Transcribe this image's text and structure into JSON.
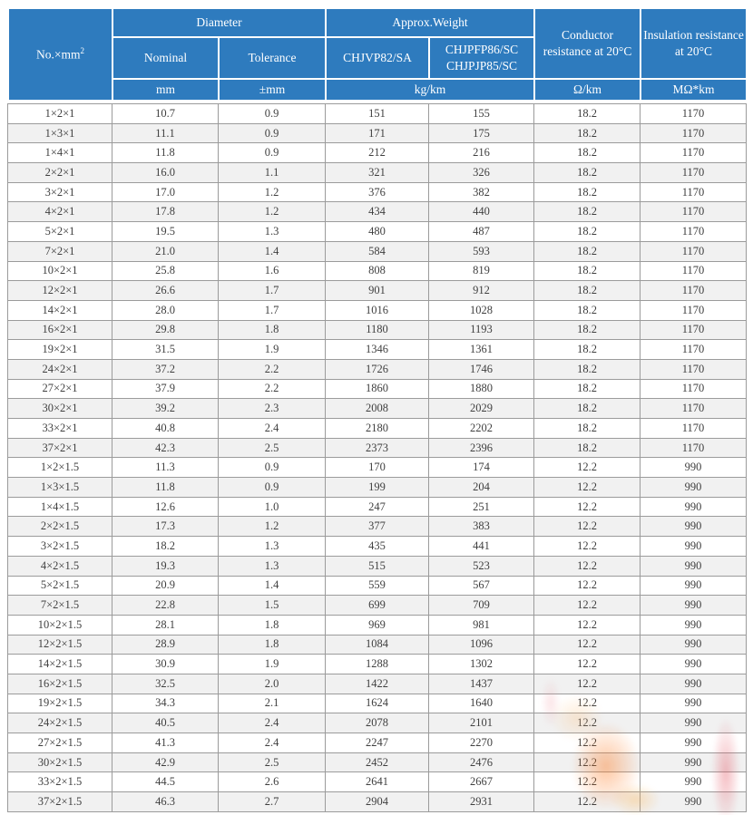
{
  "page": {
    "background": "#ffffff"
  },
  "colors": {
    "header_bg": "#2e7bbe",
    "header_text": "#ffffff",
    "row_alt_bg": "#f1f1f1",
    "grid_border": "#9b9b9b",
    "cell_text": "#3f3f3f",
    "watermark_orange": "#ff7820",
    "watermark_red": "#e4505f"
  },
  "table": {
    "header": {
      "no_label": "No.×mm",
      "no_sup": "2",
      "diameter_label": "Diameter",
      "approx_weight_label": "Approx.Weight",
      "nominal_label": "Nominal",
      "tolerance_label": "Tolerance",
      "weight_type_1": "CHJVP82/SA",
      "weight_type_2_line1": "CHJPFP86/SC",
      "weight_type_2_line2": "CHJPJP85/SC",
      "conductor_resistance_label": "Conductor resistance at 20°C",
      "insulation_resistance_label": "Insulation resistance at 20°C",
      "unit_nominal": "mm",
      "unit_tolerance": "±mm",
      "unit_weight": "kg/km",
      "unit_conductor": "Ω/km",
      "unit_insulation": "MΩ*km"
    },
    "column_keys": [
      "spec",
      "nominal-diameter",
      "tolerance-diameter",
      "weight-chjvp82-sa",
      "weight-chjpfp86-sc",
      "conductor-resistance",
      "insulation-resistance"
    ],
    "rows": [
      [
        "1×2×1",
        "10.7",
        "0.9",
        "151",
        "155",
        "18.2",
        "1170"
      ],
      [
        "1×3×1",
        "11.1",
        "0.9",
        "171",
        "175",
        "18.2",
        "1170"
      ],
      [
        "1×4×1",
        "11.8",
        "0.9",
        "212",
        "216",
        "18.2",
        "1170"
      ],
      [
        "2×2×1",
        "16.0",
        "1.1",
        "321",
        "326",
        "18.2",
        "1170"
      ],
      [
        "3×2×1",
        "17.0",
        "1.2",
        "376",
        "382",
        "18.2",
        "1170"
      ],
      [
        "4×2×1",
        "17.8",
        "1.2",
        "434",
        "440",
        "18.2",
        "1170"
      ],
      [
        "5×2×1",
        "19.5",
        "1.3",
        "480",
        "487",
        "18.2",
        "1170"
      ],
      [
        "7×2×1",
        "21.0",
        "1.4",
        "584",
        "593",
        "18.2",
        "1170"
      ],
      [
        "10×2×1",
        "25.8",
        "1.6",
        "808",
        "819",
        "18.2",
        "1170"
      ],
      [
        "12×2×1",
        "26.6",
        "1.7",
        "901",
        "912",
        "18.2",
        "1170"
      ],
      [
        "14×2×1",
        "28.0",
        "1.7",
        "1016",
        "1028",
        "18.2",
        "1170"
      ],
      [
        "16×2×1",
        "29.8",
        "1.8",
        "1180",
        "1193",
        "18.2",
        "1170"
      ],
      [
        "19×2×1",
        "31.5",
        "1.9",
        "1346",
        "1361",
        "18.2",
        "1170"
      ],
      [
        "24×2×1",
        "37.2",
        "2.2",
        "1726",
        "1746",
        "18.2",
        "1170"
      ],
      [
        "27×2×1",
        "37.9",
        "2.2",
        "1860",
        "1880",
        "18.2",
        "1170"
      ],
      [
        "30×2×1",
        "39.2",
        "2.3",
        "2008",
        "2029",
        "18.2",
        "1170"
      ],
      [
        "33×2×1",
        "40.8",
        "2.4",
        "2180",
        "2202",
        "18.2",
        "1170"
      ],
      [
        "37×2×1",
        "42.3",
        "2.5",
        "2373",
        "2396",
        "18.2",
        "1170"
      ],
      [
        "1×2×1.5",
        "11.3",
        "0.9",
        "170",
        "174",
        "12.2",
        "990"
      ],
      [
        "1×3×1.5",
        "11.8",
        "0.9",
        "199",
        "204",
        "12.2",
        "990"
      ],
      [
        "1×4×1.5",
        "12.6",
        "1.0",
        "247",
        "251",
        "12.2",
        "990"
      ],
      [
        "2×2×1.5",
        "17.3",
        "1.2",
        "377",
        "383",
        "12.2",
        "990"
      ],
      [
        "3×2×1.5",
        "18.2",
        "1.3",
        "435",
        "441",
        "12.2",
        "990"
      ],
      [
        "4×2×1.5",
        "19.3",
        "1.3",
        "515",
        "523",
        "12.2",
        "990"
      ],
      [
        "5×2×1.5",
        "20.9",
        "1.4",
        "559",
        "567",
        "12.2",
        "990"
      ],
      [
        "7×2×1.5",
        "22.8",
        "1.5",
        "699",
        "709",
        "12.2",
        "990"
      ],
      [
        "10×2×1.5",
        "28.1",
        "1.8",
        "969",
        "981",
        "12.2",
        "990"
      ],
      [
        "12×2×1.5",
        "28.9",
        "1.8",
        "1084",
        "1096",
        "12.2",
        "990"
      ],
      [
        "14×2×1.5",
        "30.9",
        "1.9",
        "1288",
        "1302",
        "12.2",
        "990"
      ],
      [
        "16×2×1.5",
        "32.5",
        "2.0",
        "1422",
        "1437",
        "12.2",
        "990"
      ],
      [
        "19×2×1.5",
        "34.3",
        "2.1",
        "1624",
        "1640",
        "12.2",
        "990"
      ],
      [
        "24×2×1.5",
        "40.5",
        "2.4",
        "2078",
        "2101",
        "12.2",
        "990"
      ],
      [
        "27×2×1.5",
        "41.3",
        "2.4",
        "2247",
        "2270",
        "12.2",
        "990"
      ],
      [
        "30×2×1.5",
        "42.9",
        "2.5",
        "2452",
        "2476",
        "12.2",
        "990"
      ],
      [
        "33×2×1.5",
        "44.5",
        "2.6",
        "2641",
        "2667",
        "12.2",
        "990"
      ],
      [
        "37×2×1.5",
        "46.3",
        "2.7",
        "2904",
        "2931",
        "12.2",
        "990"
      ]
    ]
  }
}
